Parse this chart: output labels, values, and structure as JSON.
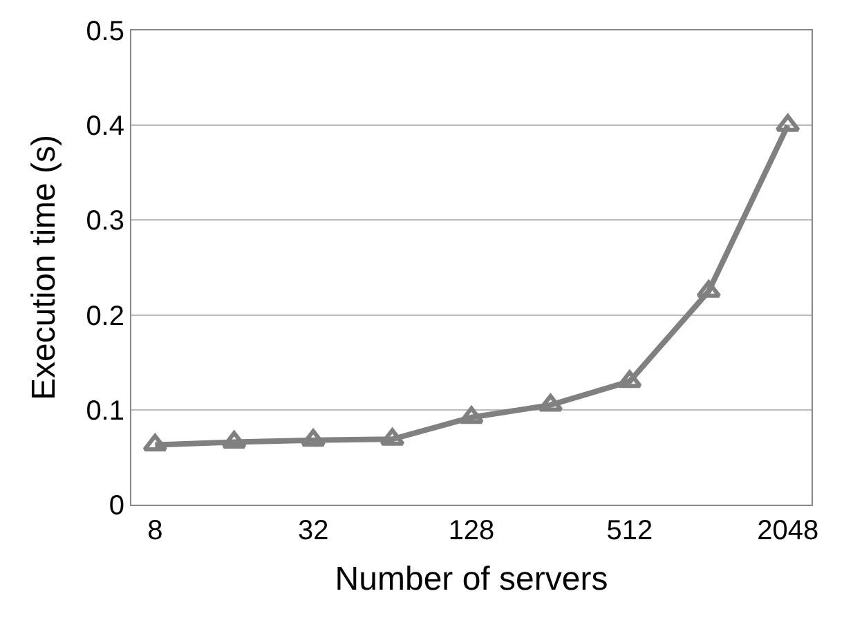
{
  "chart_data": {
    "type": "line",
    "xlabel": "Number of servers",
    "ylabel": "Execution time (s)",
    "categories": [
      "8",
      null,
      "32",
      null,
      "128",
      null,
      "512",
      null,
      "2048"
    ],
    "series": [
      {
        "color": "#808080",
        "values": [
          0.063,
          0.066,
          0.068,
          0.069,
          0.092,
          0.105,
          0.13,
          0.225,
          0.4
        ]
      }
    ],
    "ylim": [
      0,
      0.5
    ],
    "yticks": [
      0,
      0.1,
      0.2,
      0.3,
      0.4,
      0.5
    ],
    "grid": "y",
    "marker": "triangle",
    "line_style": "solid"
  }
}
